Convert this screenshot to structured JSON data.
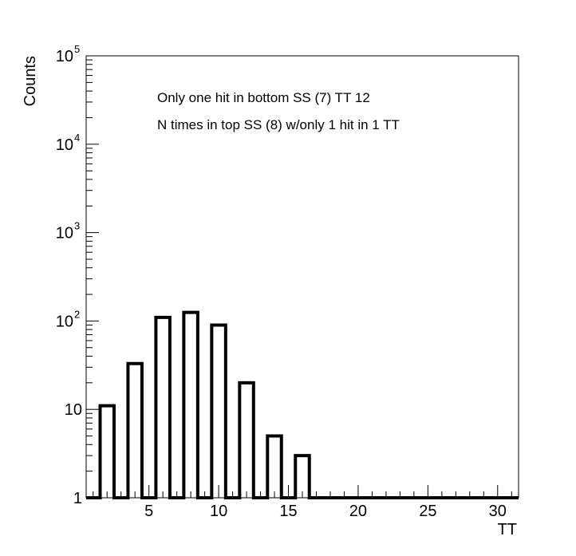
{
  "chart_data": {
    "type": "bar",
    "title": "",
    "xlabel": "TT",
    "ylabel": "Counts",
    "y_scale": "log",
    "xlim": [
      0.5,
      31.5
    ],
    "ylim": [
      1,
      100000
    ],
    "grid": false,
    "legend": "none",
    "annotations": [
      "Only one hit in bottom SS (7) TT 12",
      "N times in top SS (8) w/only 1 hit in 1 TT"
    ],
    "x_ticks": [
      {
        "value": 5,
        "label": "5"
      },
      {
        "value": 10,
        "label": "10"
      },
      {
        "value": 15,
        "label": "15"
      },
      {
        "value": 20,
        "label": "20"
      },
      {
        "value": 25,
        "label": "25"
      },
      {
        "value": 30,
        "label": "30"
      }
    ],
    "y_ticks": [
      {
        "value": 1,
        "label": "1",
        "exp": ""
      },
      {
        "value": 10,
        "label": "10",
        "exp": ""
      },
      {
        "value": 100,
        "label": "10",
        "exp": "2"
      },
      {
        "value": 1000,
        "label": "10",
        "exp": "3"
      },
      {
        "value": 10000,
        "label": "10",
        "exp": "4"
      },
      {
        "value": 100000,
        "label": "10",
        "exp": "5"
      }
    ],
    "bin_width": 1,
    "bins": [
      {
        "x": 2,
        "value": 11
      },
      {
        "x": 4,
        "value": 33
      },
      {
        "x": 6,
        "value": 110
      },
      {
        "x": 8,
        "value": 125
      },
      {
        "x": 10,
        "value": 90
      },
      {
        "x": 12,
        "value": 20
      },
      {
        "x": 14,
        "value": 5
      },
      {
        "x": 16,
        "value": 3
      }
    ],
    "colors": {
      "line": "#000000",
      "background": "#ffffff"
    }
  }
}
